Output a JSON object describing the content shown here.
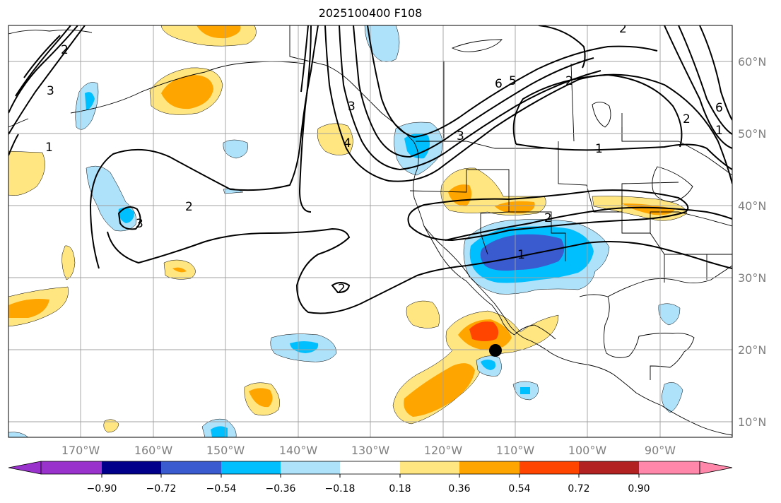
{
  "title": "2025100400 F108",
  "map": {
    "lon_ticks": [
      "170°W",
      "160°W",
      "150°W",
      "140°W",
      "130°W",
      "120°W",
      "110°W",
      "100°W",
      "90°W"
    ],
    "lat_ticks": [
      "60°N",
      "50°N",
      "40°N",
      "30°N",
      "20°N",
      "10°N"
    ],
    "contour_labels": [
      "1",
      "1",
      "2",
      "2",
      "2",
      "3",
      "3",
      "3",
      "4",
      "6",
      "5",
      "2",
      "2",
      "1",
      "6",
      "2",
      "3",
      "2",
      "1"
    ],
    "marker": {
      "name": "storm-center",
      "lon": -112.5,
      "lat": 20.0
    }
  },
  "colorbar": {
    "ticks": [
      "−0.90",
      "−0.72",
      "−0.54",
      "−0.36",
      "−0.18",
      "0.18",
      "0.36",
      "0.54",
      "0.72",
      "0.90"
    ],
    "colors": [
      "#9932cc",
      "#00008b",
      "#3a5bcf",
      "#00bfff",
      "#aee1fa",
      "#ffffff",
      "#ffe680",
      "#ffa500",
      "#ff4500",
      "#b22222",
      "#ff88aa"
    ]
  },
  "colors": {
    "light_blue": "#aee1fa",
    "blue": "#00bfff",
    "mid_blue": "#3a5bcf",
    "yellow": "#ffe680",
    "orange": "#ffa500",
    "red_orange": "#ff4500",
    "grid": "#a0a0a0"
  }
}
